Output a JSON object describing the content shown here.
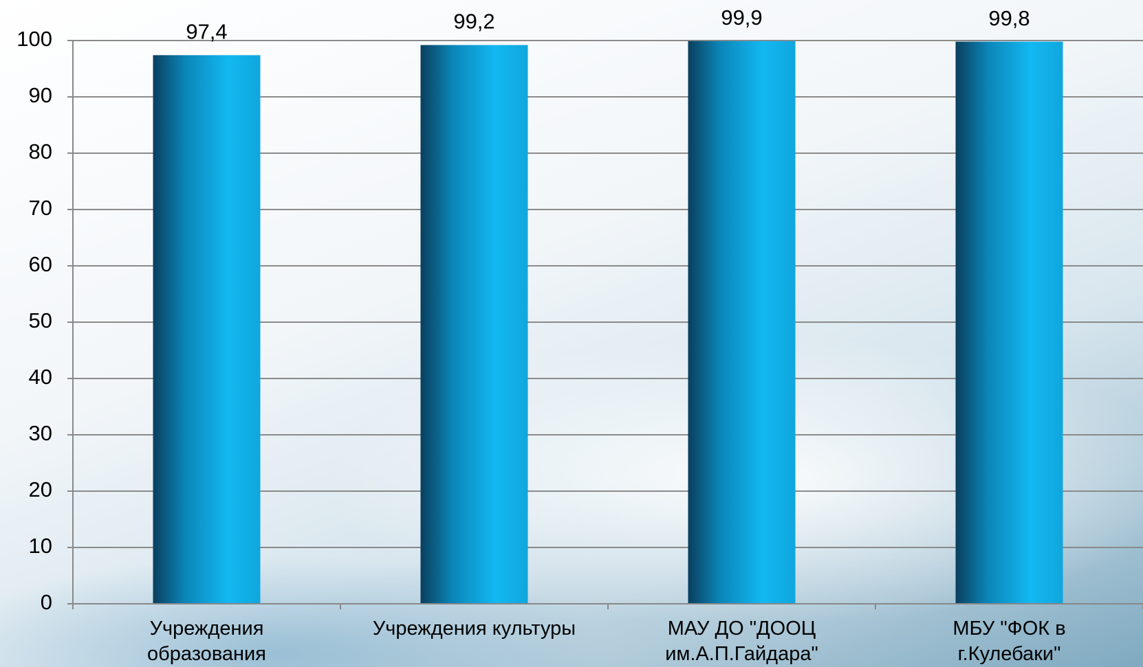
{
  "chart_data": {
    "type": "bar",
    "categories": [
      "Учреждения образования",
      "Учреждения культуры",
      "МАУ ДО \"ДООЦ им.А.П.Гайдара\"",
      "МБУ \"ФОК в г.Кулебаки\""
    ],
    "values": [
      97.4,
      99.2,
      99.9,
      99.8
    ],
    "value_labels": [
      "97,4",
      "99,2",
      "99,9",
      "99,8"
    ],
    "color": "#12b4ee",
    "ylim": [
      0,
      100
    ],
    "yticks": [
      0,
      10,
      20,
      30,
      40,
      50,
      60,
      70,
      80,
      90,
      100
    ],
    "grid": true
  }
}
